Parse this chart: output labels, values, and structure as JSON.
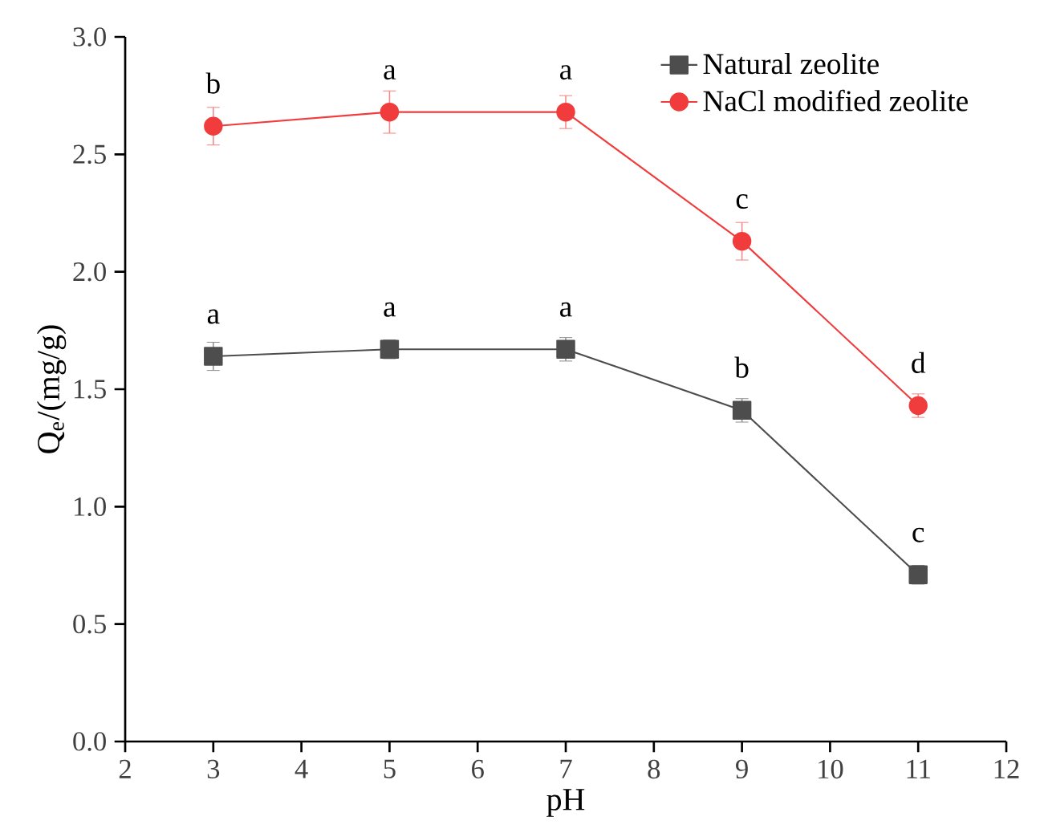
{
  "chart_data": {
    "type": "line",
    "xlabel": "pH",
    "ylabel": "Q$_{e}$/(mg/g)",
    "x": [
      3,
      5,
      7,
      9,
      11
    ],
    "series": [
      {
        "name": "Natural zeolite",
        "color": "#4d4d4d",
        "marker": "square",
        "values": [
          1.64,
          1.67,
          1.67,
          1.41,
          0.71
        ],
        "errors": [
          0.06,
          0.04,
          0.05,
          0.05,
          0.04
        ]
      },
      {
        "name": "NaCl modified zeolite",
        "color": "#f03c3c",
        "marker": "circle",
        "values": [
          2.62,
          2.68,
          2.68,
          2.13,
          1.43
        ],
        "errors": [
          0.08,
          0.09,
          0.07,
          0.08,
          0.05
        ]
      }
    ],
    "xlim": [
      2,
      12
    ],
    "xticks": [
      2,
      3,
      4,
      5,
      6,
      7,
      8,
      9,
      10,
      11,
      12
    ],
    "ylim": [
      0,
      3
    ],
    "yticks": [
      {
        "value": 0,
        "label": "0.0"
      },
      0.5,
      {
        "value": 1,
        "label": "1.0"
      },
      1.5,
      {
        "value": 2,
        "label": "2.0"
      },
      2.5,
      {
        "value": 3,
        "label": "3.0"
      }
    ],
    "grid": false,
    "legend": "top right",
    "line_style": "solid",
    "annotations": [
      {
        "text": "a",
        "x": 3,
        "y": 1.64
      },
      {
        "text": "a",
        "x": 5,
        "y": 1.67
      },
      {
        "text": "a",
        "x": 7,
        "y": 1.67
      },
      {
        "text": "b",
        "x": 9,
        "y": 1.41
      },
      {
        "text": "c",
        "x": 11,
        "y": 0.71
      },
      {
        "text": "b",
        "x": 3,
        "y": 2.62
      },
      {
        "text": "a",
        "x": 5,
        "y": 2.68
      },
      {
        "text": "a",
        "x": 7,
        "y": 2.68
      },
      {
        "text": "c",
        "x": 9,
        "y": 2.13
      },
      {
        "text": "d",
        "x": 11,
        "y": 1.43
      }
    ]
  }
}
